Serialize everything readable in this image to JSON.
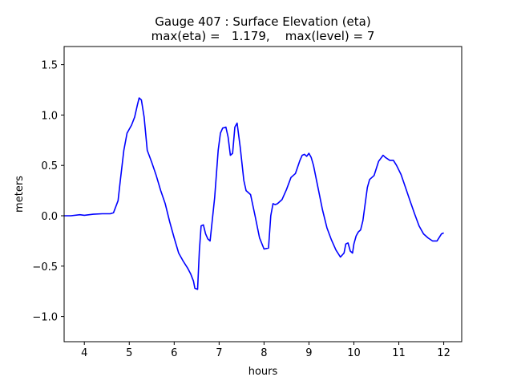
{
  "chart_data": {
    "type": "line",
    "title_line1": "Gauge 407 : Surface Elevation (eta)",
    "title_line2": "max(eta) =   1.179,    max(level) = 7",
    "xlabel": "hours",
    "ylabel": "meters",
    "xlim": [
      3.55,
      12.4
    ],
    "ylim": [
      -1.25,
      1.68
    ],
    "xticks": [
      4,
      5,
      6,
      7,
      8,
      9,
      10,
      11,
      12
    ],
    "yticks": [
      -1.0,
      -0.5,
      0.0,
      0.5,
      1.0,
      1.5
    ],
    "xtick_labels": [
      "4",
      "5",
      "6",
      "7",
      "8",
      "9",
      "10",
      "11",
      "12"
    ],
    "ytick_labels": [
      "−1.0",
      "−0.5",
      "0.0",
      "0.5",
      "1.0",
      "1.5"
    ],
    "line_color": "#0000ff",
    "series": [
      {
        "name": "eta",
        "x": [
          3.55,
          3.7,
          3.9,
          4.0,
          4.2,
          4.4,
          4.5,
          4.58,
          4.65,
          4.75,
          4.8,
          4.88,
          4.95,
          5.05,
          5.12,
          5.18,
          5.22,
          5.27,
          5.33,
          5.4,
          5.5,
          5.6,
          5.7,
          5.8,
          5.9,
          6.0,
          6.1,
          6.2,
          6.3,
          6.37,
          6.43,
          6.46,
          6.52,
          6.56,
          6.6,
          6.65,
          6.7,
          6.75,
          6.8,
          6.9,
          6.98,
          7.03,
          7.08,
          7.15,
          7.2,
          7.25,
          7.3,
          7.35,
          7.4,
          7.47,
          7.55,
          7.6,
          7.7,
          7.8,
          7.9,
          8.0,
          8.1,
          8.15,
          8.2,
          8.25,
          8.3,
          8.35,
          8.4,
          8.5,
          8.6,
          8.7,
          8.8,
          8.85,
          8.9,
          8.95,
          9.0,
          9.05,
          9.1,
          9.2,
          9.3,
          9.4,
          9.5,
          9.6,
          9.7,
          9.78,
          9.82,
          9.87,
          9.92,
          9.97,
          10.0,
          10.05,
          10.1,
          10.15,
          10.2,
          10.3,
          10.35,
          10.45,
          10.55,
          10.65,
          10.7,
          10.8,
          10.88,
          10.95,
          11.05,
          11.15,
          11.25,
          11.35,
          11.45,
          11.55,
          11.65,
          11.75,
          11.85,
          11.95,
          12.0
        ],
        "y": [
          0.0,
          0.0,
          0.01,
          0.005,
          0.015,
          0.02,
          0.02,
          0.02,
          0.03,
          0.15,
          0.35,
          0.65,
          0.82,
          0.9,
          0.98,
          1.1,
          1.17,
          1.15,
          0.98,
          0.65,
          0.53,
          0.4,
          0.25,
          0.12,
          -0.06,
          -0.22,
          -0.37,
          -0.45,
          -0.52,
          -0.58,
          -0.65,
          -0.72,
          -0.73,
          -0.35,
          -0.1,
          -0.09,
          -0.18,
          -0.23,
          -0.25,
          0.18,
          0.65,
          0.82,
          0.87,
          0.88,
          0.78,
          0.6,
          0.62,
          0.88,
          0.92,
          0.68,
          0.35,
          0.25,
          0.21,
          0.0,
          -0.22,
          -0.33,
          -0.32,
          0.0,
          0.12,
          0.11,
          0.12,
          0.14,
          0.16,
          0.26,
          0.38,
          0.42,
          0.55,
          0.6,
          0.61,
          0.59,
          0.62,
          0.58,
          0.5,
          0.28,
          0.06,
          -0.12,
          -0.24,
          -0.34,
          -0.41,
          -0.37,
          -0.28,
          -0.27,
          -0.35,
          -0.37,
          -0.28,
          -0.2,
          -0.16,
          -0.14,
          -0.05,
          0.28,
          0.36,
          0.4,
          0.54,
          0.6,
          0.58,
          0.55,
          0.55,
          0.5,
          0.41,
          0.28,
          0.15,
          0.02,
          -0.1,
          -0.18,
          -0.22,
          -0.25,
          -0.25,
          -0.18,
          -0.17
        ]
      }
    ]
  }
}
